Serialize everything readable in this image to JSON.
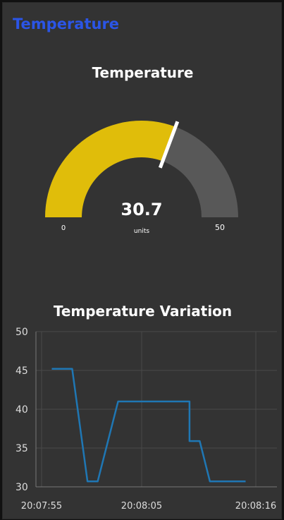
{
  "group": {
    "title": "Temperature"
  },
  "gauge": {
    "title": "Temperature",
    "value": 30.7,
    "value_text": "30.7",
    "units": "units",
    "min": 0,
    "max": 50,
    "min_label": "0",
    "max_label": "50",
    "fill_color": "#e0bd0a",
    "track_color": "#585858"
  },
  "chart": {
    "title": "Temperature Variation"
  },
  "chart_data": {
    "type": "line",
    "title": "Temperature Variation",
    "xlabel": "",
    "ylabel": "",
    "ylim": [
      30,
      50
    ],
    "y_ticks": [
      "50",
      "45",
      "40",
      "35",
      "30"
    ],
    "x_ticks": [
      "20:07:55",
      "20:08:05",
      "20:08:16"
    ],
    "grid": true,
    "series": [
      {
        "color": "#1f77b4",
        "x": [
          "20:07:56",
          "20:07:58",
          "20:07:59.5",
          "20:08:00.5",
          "20:08:02.5",
          "20:08:09.5",
          "20:08:09.5",
          "20:08:10.5",
          "20:08:11.5",
          "20:08:15"
        ],
        "y": [
          45.2,
          45.2,
          30.7,
          30.7,
          41.0,
          41.0,
          35.9,
          35.9,
          30.7,
          30.7
        ]
      }
    ]
  }
}
